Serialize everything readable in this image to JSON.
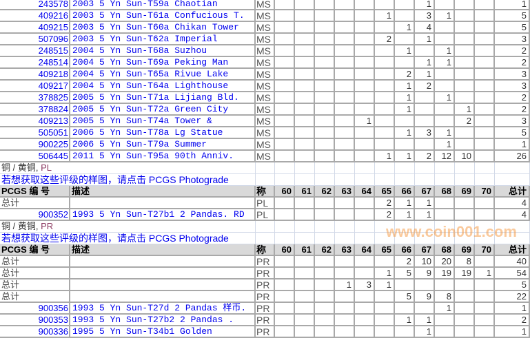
{
  "grades": [
    "60",
    "61",
    "62",
    "63",
    "64",
    "65",
    "66",
    "67",
    "68",
    "69",
    "70"
  ],
  "header": {
    "pcgs": "PCGS 编 号",
    "desc": "描述",
    "des": "称",
    "total": "总计"
  },
  "ms_rows": [
    {
      "num": "243578",
      "desc": "2003 5 Yn Sun-T59a Chaotian",
      "des": "MS",
      "g": {
        "67": "1"
      },
      "total": "1"
    },
    {
      "num": "409216",
      "desc": "2003 5 Yn Sun-T61a Confucious T.",
      "des": "MS",
      "g": {
        "65": "1",
        "67": "3",
        "68": "1"
      },
      "total": "5"
    },
    {
      "num": "409215",
      "desc": "2003 5 Yn Sun-T60a Chikan Tower",
      "des": "MS",
      "g": {
        "66": "1",
        "67": "4"
      },
      "total": "5"
    },
    {
      "num": "507096",
      "desc": "2003 5 Yn Sun-T62a Imperial",
      "des": "MS",
      "g": {
        "65": "2",
        "67": "1"
      },
      "total": "3"
    },
    {
      "num": "248515",
      "desc": "2004 5 Yn Sun-T68a Suzhou",
      "des": "MS",
      "g": {
        "66": "1",
        "68": "1"
      },
      "total": "2"
    },
    {
      "num": "248514",
      "desc": "2004 5 Yn Sun-T69a Peking Man",
      "des": "MS",
      "g": {
        "67": "1",
        "68": "1"
      },
      "total": "2"
    },
    {
      "num": "409218",
      "desc": "2004 5 Yn Sun-T65a Rivue Lake",
      "des": "MS",
      "g": {
        "66": "2",
        "67": "1"
      },
      "total": "3"
    },
    {
      "num": "409217",
      "desc": "2004 5 Yn Sun-T64a Lighthouse",
      "des": "MS",
      "g": {
        "66": "1",
        "67": "2"
      },
      "total": "3"
    },
    {
      "num": "378825",
      "desc": "2005 5 Yn Sun-T71a Lijiang Bld.",
      "des": "MS",
      "g": {
        "66": "1",
        "68": "1"
      },
      "total": "2"
    },
    {
      "num": "378824",
      "desc": "2005 5 Yn Sun-T72a Green City",
      "des": "MS",
      "g": {
        "66": "1",
        "69": "1"
      },
      "total": "2"
    },
    {
      "num": "409213",
      "desc": "2005 5 Yn Sun-T74a Tower &",
      "des": "MS",
      "g": {
        "64": "1",
        "69": "2"
      },
      "total": "3"
    },
    {
      "num": "505051",
      "desc": "2006 5 Yn Sun-T78a Lg Statue",
      "des": "MS",
      "g": {
        "66": "1",
        "67": "3",
        "68": "1"
      },
      "total": "5"
    },
    {
      "num": "900225",
      "desc": "2006 5 Yn Sun-T79a Summer",
      "des": "MS",
      "g": {
        "68": "1"
      },
      "total": "1"
    },
    {
      "num": "506445",
      "desc": "2011 5 Yn Sun-T95a 90th Anniv.",
      "des": "MS",
      "g": {
        "65": "1",
        "66": "1",
        "67": "2",
        "68": "12",
        "69": "10"
      },
      "total": "26"
    }
  ],
  "pl_section": {
    "title_metal": "铜 / 黄铜, ",
    "title_des": "PL",
    "photograde": "若想获取这些评级的样图，请点击 PCGS Photograde",
    "rows": [
      {
        "num": "总计",
        "desc": "",
        "des": "PL",
        "g": {
          "65": "2",
          "66": "1",
          "67": "1"
        },
        "total": "4",
        "is_total": true
      },
      {
        "num": "900352",
        "desc": "1993 5 Yn Sun-T27b1 2 Pandas. RD",
        "des": "PL",
        "g": {
          "65": "2",
          "66": "1",
          "67": "1"
        },
        "total": "4"
      }
    ]
  },
  "pr_section": {
    "title_metal": "铜 / 黄铜, ",
    "title_des": "PR",
    "photograde": "若想获取这些评级的样图，请点击 PCGS Photograde",
    "rows": [
      {
        "num": "总计",
        "desc": "",
        "des": "PR",
        "g": {
          "66": "2",
          "67": "10",
          "68": "20",
          "69": "8"
        },
        "total": "40",
        "is_total": true
      },
      {
        "num": "总计",
        "desc": "",
        "des": "PR",
        "g": {
          "65": "1",
          "66": "5",
          "67": "9",
          "68": "19",
          "69": "19",
          "70": "1"
        },
        "total": "54",
        "is_total": true
      },
      {
        "num": "总计",
        "desc": "",
        "des": "PR",
        "g": {
          "63": "1",
          "64": "3",
          "65": "1"
        },
        "total": "5",
        "is_total": true
      },
      {
        "num": "总计",
        "desc": "",
        "des": "PR",
        "g": {
          "66": "5",
          "67": "9",
          "68": "8"
        },
        "total": "22",
        "is_total": true
      },
      {
        "num": "900356",
        "desc": "1993 5 Yn Sun-T27d 2 Pandas 样币.",
        "des": "PR",
        "g": {
          "68": "1"
        },
        "total": "1"
      },
      {
        "num": "900353",
        "desc": "1993 5 Yn Sun-T27b2 2 Pandas .",
        "des": "PR",
        "g": {
          "66": "1",
          "67": "1"
        },
        "total": "2"
      },
      {
        "num": "900336",
        "desc": "1995 5 Yn Sun-T34b1 Golden",
        "des": "PR",
        "g": {
          "67": "1"
        },
        "total": "1"
      }
    ]
  },
  "watermark": "www.coin001.com"
}
